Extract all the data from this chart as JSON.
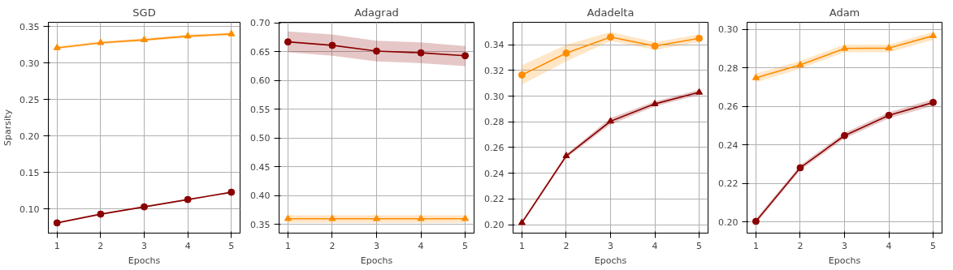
{
  "chart_data": [
    {
      "type": "line",
      "title": "SGD",
      "xlabel": "Epochs",
      "ylabel": "Sparsity",
      "x": [
        1,
        2,
        3,
        4,
        5
      ],
      "xlim": [
        0.8,
        5.2
      ],
      "xticks": [
        1,
        2,
        3,
        4,
        5
      ],
      "ylim": [
        0.067,
        0.356
      ],
      "yticks": [
        {
          "value": 0.1,
          "label": "0.10"
        },
        0.15,
        {
          "value": 0.2,
          "label": "0.20"
        },
        0.25,
        {
          "value": 0.3,
          "label": "0.30"
        },
        0.35
      ],
      "grid": true,
      "line_style": "solid",
      "series": [
        {
          "color": "#ff8c00",
          "marker": "triangle",
          "values": [
            0.321,
            0.328,
            0.332,
            0.337,
            0.34
          ],
          "lower": [
            0.319,
            0.326,
            0.33,
            0.335,
            0.338
          ],
          "upper": [
            0.323,
            0.33,
            0.334,
            0.339,
            0.342
          ]
        },
        {
          "color": "#8b0000",
          "marker": "circle",
          "values": [
            0.081,
            0.093,
            0.103,
            0.113,
            0.123
          ],
          "lower": [
            0.08,
            0.092,
            0.102,
            0.112,
            0.122
          ],
          "upper": [
            0.082,
            0.094,
            0.104,
            0.114,
            0.124
          ]
        }
      ]
    },
    {
      "type": "line",
      "title": "Adagrad",
      "xlabel": "Epochs",
      "x": [
        1,
        2,
        3,
        4,
        5
      ],
      "xlim": [
        0.8,
        5.2
      ],
      "xticks": [
        1,
        2,
        3,
        4,
        5
      ],
      "ylim": [
        0.335,
        0.701
      ],
      "yticks": [
        0.35,
        {
          "value": 0.4,
          "label": "0.40"
        },
        0.45,
        {
          "value": 0.5,
          "label": "0.50"
        },
        0.55,
        {
          "value": 0.6,
          "label": "0.60"
        },
        0.65,
        {
          "value": 0.7,
          "label": "0.70"
        }
      ],
      "grid": true,
      "line_style": "solid",
      "series": [
        {
          "color": "#8b0000",
          "marker": "circle",
          "values": [
            0.667,
            0.661,
            0.651,
            0.648,
            0.643
          ],
          "lower": [
            0.649,
            0.643,
            0.633,
            0.63,
            0.625
          ],
          "upper": [
            0.685,
            0.68,
            0.669,
            0.666,
            0.66
          ]
        },
        {
          "color": "#ff8c00",
          "marker": "triangle",
          "values": [
            0.36,
            0.36,
            0.36,
            0.36,
            0.36
          ],
          "lower": [
            0.353,
            0.353,
            0.353,
            0.353,
            0.353
          ],
          "upper": [
            0.366,
            0.366,
            0.366,
            0.366,
            0.366
          ]
        }
      ]
    },
    {
      "type": "line",
      "title": "Adadelta",
      "xlabel": "Epochs",
      "x": [
        1,
        2,
        3,
        4,
        5
      ],
      "xlim": [
        0.8,
        5.2
      ],
      "xticks": [
        1,
        2,
        3,
        4,
        5
      ],
      "ylim": [
        0.1934,
        0.3575
      ],
      "yticks": [
        {
          "value": 0.2,
          "label": "0.20"
        },
        0.22,
        0.24,
        0.26,
        0.28,
        {
          "value": 0.3,
          "label": "0.30"
        },
        0.32,
        0.34
      ],
      "grid": true,
      "line_style": "solid",
      "series": [
        {
          "color": "#ff8c00",
          "marker": "circle",
          "values": [
            0.3165,
            0.3335,
            0.346,
            0.339,
            0.345
          ],
          "lower": [
            0.309,
            0.327,
            0.343,
            0.336,
            0.342
          ],
          "upper": [
            0.324,
            0.34,
            0.35,
            0.342,
            0.348
          ]
        },
        {
          "color": "#8b0000",
          "marker": "triangle",
          "values": [
            0.2015,
            0.2535,
            0.2805,
            0.294,
            0.303
          ],
          "lower": [
            0.2,
            0.252,
            0.278,
            0.292,
            0.301
          ],
          "upper": [
            0.203,
            0.255,
            0.283,
            0.296,
            0.305
          ]
        }
      ]
    },
    {
      "type": "line",
      "title": "Adam",
      "xlabel": "Epochs",
      "x": [
        1,
        2,
        3,
        4,
        5
      ],
      "xlim": [
        0.8,
        5.2
      ],
      "xticks": [
        1,
        2,
        3,
        4,
        5
      ],
      "ylim": [
        0.1942,
        0.3036
      ],
      "yticks": [
        {
          "value": 0.2,
          "label": "0.20"
        },
        0.22,
        0.24,
        0.26,
        0.28,
        {
          "value": 0.3,
          "label": "0.30"
        }
      ],
      "grid": true,
      "line_style": "solid",
      "series": [
        {
          "color": "#ff8c00",
          "marker": "triangle",
          "values": [
            0.2748,
            0.2815,
            0.29,
            0.2902,
            0.2966
          ],
          "lower": [
            0.2725,
            0.2795,
            0.288,
            0.288,
            0.2945
          ],
          "upper": [
            0.277,
            0.2835,
            0.292,
            0.292,
            0.2985
          ]
        },
        {
          "color": "#8b0000",
          "marker": "circle",
          "values": [
            0.2003,
            0.2281,
            0.2448,
            0.2553,
            0.262
          ],
          "lower": [
            0.199,
            0.2268,
            0.2433,
            0.2537,
            0.2603
          ],
          "upper": [
            0.2016,
            0.2294,
            0.2463,
            0.2569,
            0.2637
          ]
        }
      ]
    }
  ]
}
